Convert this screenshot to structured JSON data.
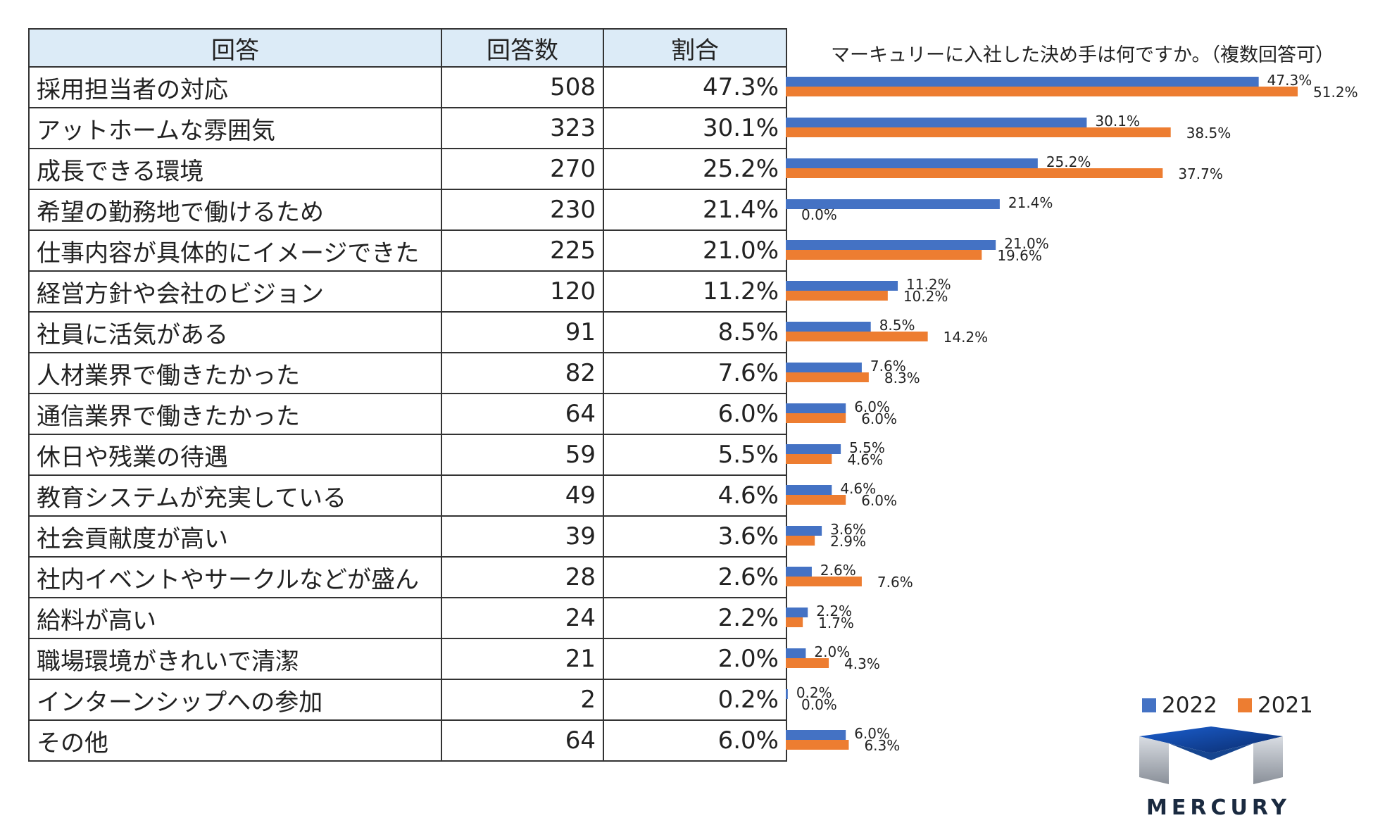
{
  "table": {
    "headers": [
      "回答",
      "回答数",
      "割合"
    ],
    "rows": [
      {
        "label": "採用担当者の対応",
        "count": "508",
        "pct": "47.3%"
      },
      {
        "label": "アットホームな雰囲気",
        "count": "323",
        "pct": "30.1%"
      },
      {
        "label": "成長できる環境",
        "count": "270",
        "pct": "25.2%"
      },
      {
        "label": "希望の勤務地で働けるため",
        "count": "230",
        "pct": "21.4%"
      },
      {
        "label": "仕事内容が具体的にイメージできた",
        "count": "225",
        "pct": "21.0%"
      },
      {
        "label": "経営方針や会社のビジョン",
        "count": "120",
        "pct": "11.2%"
      },
      {
        "label": "社員に活気がある",
        "count": "91",
        "pct": "8.5%"
      },
      {
        "label": "人材業界で働きたかった",
        "count": "82",
        "pct": "7.6%"
      },
      {
        "label": "通信業界で働きたかった",
        "count": "64",
        "pct": "6.0%"
      },
      {
        "label": "休日や残業の待遇",
        "count": "59",
        "pct": "5.5%"
      },
      {
        "label": "教育システムが充実している",
        "count": "49",
        "pct": "4.6%"
      },
      {
        "label": "社会貢献度が高い",
        "count": "39",
        "pct": "3.6%"
      },
      {
        "label": "社内イベントやサークルなどが盛ん",
        "count": "28",
        "pct": "2.6%"
      },
      {
        "label": "給料が高い",
        "count": "24",
        "pct": "2.2%"
      },
      {
        "label": "職場環境がきれいで清潔",
        "count": "21",
        "pct": "2.0%"
      },
      {
        "label": "インターンシップへの参加",
        "count": "2",
        "pct": "0.2%"
      },
      {
        "label": "その他",
        "count": "64",
        "pct": "6.0%"
      }
    ]
  },
  "chart_data": {
    "type": "bar",
    "orientation": "horizontal",
    "title": "マーキュリーに入社した決め手は何ですか。（複数回答可）",
    "categories": [
      "採用担当者の対応",
      "アットホームな雰囲気",
      "成長できる環境",
      "希望の勤務地で働けるため",
      "仕事内容が具体的にイメージできた",
      "経営方針や会社のビジョン",
      "社員に活気がある",
      "人材業界で働きたかった",
      "通信業界で働きたかった",
      "休日や残業の待遇",
      "教育システムが充実している",
      "社会貢献度が高い",
      "社内イベントやサークルなどが盛ん",
      "給料が高い",
      "職場環境がきれいで清潔",
      "インターンシップへの参加",
      "その他"
    ],
    "xlim": [
      0,
      60
    ],
    "series": [
      {
        "name": "2022",
        "color": "#4472c4",
        "values": [
          47.3,
          30.1,
          25.2,
          21.4,
          21.0,
          11.2,
          8.5,
          7.6,
          6.0,
          5.5,
          4.6,
          3.6,
          2.6,
          2.2,
          2.0,
          0.2,
          6.0
        ],
        "labels": [
          "47.3%",
          "30.1%",
          "25.2%",
          "21.4%",
          "21.0%",
          "11.2%",
          "8.5%",
          "7.6%",
          "6.0%",
          "5.5%",
          "4.6%",
          "3.6%",
          "2.6%",
          "2.2%",
          "2.0%",
          "0.2%",
          "6.0%"
        ]
      },
      {
        "name": "2021",
        "color": "#ed7d31",
        "values": [
          51.2,
          38.5,
          37.7,
          0.0,
          19.6,
          10.2,
          14.2,
          8.3,
          6.0,
          4.6,
          6.0,
          2.9,
          7.6,
          1.7,
          4.3,
          0.0,
          6.3
        ],
        "labels": [
          "51.2%",
          "38.5%",
          "37.7%",
          "0.0%",
          "19.6%",
          "10.2%",
          "14.2%",
          "8.3%",
          "6.0%",
          "4.6%",
          "6.0%",
          "2.9%",
          "7.6%",
          "1.7%",
          "4.3%",
          "0.0%",
          "6.3%"
        ]
      }
    ],
    "legend": "bottom-right"
  },
  "logo": {
    "text": "MERCURY"
  }
}
